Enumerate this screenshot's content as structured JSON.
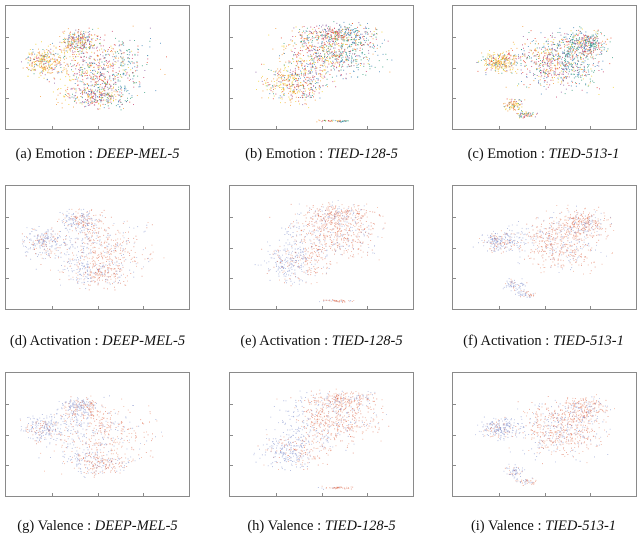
{
  "captions": [
    {
      "id": "a",
      "prefix": "(a) Emotion : ",
      "model": "DEEP-MEL-5"
    },
    {
      "id": "b",
      "prefix": "(b) Emotion : ",
      "model": "TIED-128-5"
    },
    {
      "id": "c",
      "prefix": "(c) Emotion : ",
      "model": "TIED-513-1"
    },
    {
      "id": "d",
      "prefix": "(d) Activation : ",
      "model": "DEEP-MEL-5"
    },
    {
      "id": "e",
      "prefix": "(e) Activation : ",
      "model": "TIED-128-5"
    },
    {
      "id": "f",
      "prefix": "(f) Activation : ",
      "model": "TIED-513-1"
    },
    {
      "id": "g",
      "prefix": "(g) Valence : ",
      "model": "DEEP-MEL-5"
    },
    {
      "id": "h",
      "prefix": "(h) Valence : ",
      "model": "TIED-128-5"
    },
    {
      "id": "i",
      "prefix": "(i) Valence : ",
      "model": "TIED-513-1"
    }
  ],
  "palettes": {
    "emotion": [
      "#e8442b",
      "#f29a3a",
      "#f2cf2a",
      "#3a7fb8",
      "#2f9a7a",
      "#8a5aa0",
      "#c43a6a"
    ],
    "dimension": [
      "#d9583c",
      "#e98866",
      "#8e9bd2",
      "#6d7fc4"
    ]
  }
}
